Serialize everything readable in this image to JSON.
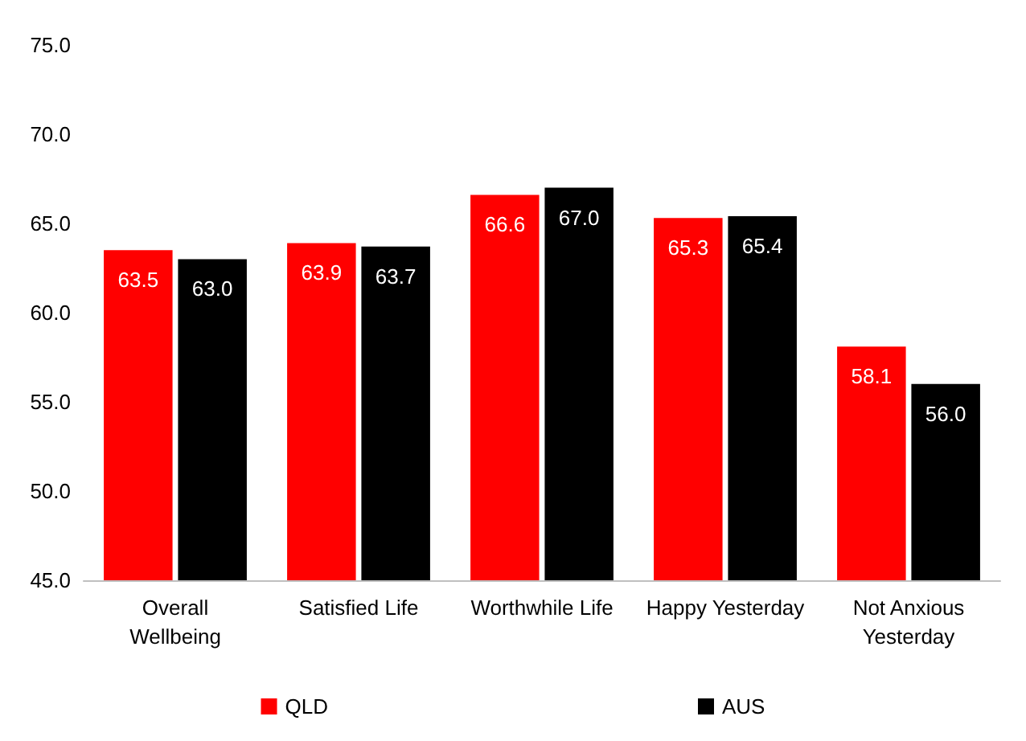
{
  "chart_data": {
    "type": "bar",
    "categories": [
      "Overall Wellbeing",
      "Satisfied Life",
      "Worthwhile Life",
      "Happy Yesterday",
      "Not Anxious Yesterday"
    ],
    "series": [
      {
        "name": "QLD",
        "color": "#ff0000",
        "values": [
          63.5,
          63.9,
          66.6,
          65.3,
          58.1
        ],
        "value_labels": [
          "63.5",
          "63.9",
          "66.6",
          "65.3",
          "58.1"
        ]
      },
      {
        "name": "AUS",
        "color": "#000000",
        "values": [
          63.0,
          63.7,
          67.0,
          65.4,
          56.0
        ],
        "value_labels": [
          "63.0",
          "63.7",
          "67.0",
          "65.4",
          "56.0"
        ]
      }
    ],
    "ylim": [
      45,
      75
    ],
    "yticks": [
      {
        "value": 45,
        "label": "45.0"
      },
      {
        "value": 50,
        "label": "50.0"
      },
      {
        "value": 55,
        "label": "55.0"
      },
      {
        "value": 60,
        "label": "60.0"
      },
      {
        "value": 65,
        "label": "65.0"
      },
      {
        "value": 70,
        "label": "70.0"
      },
      {
        "value": 75,
        "label": "75.0"
      }
    ],
    "grid": false,
    "legend": "bottom"
  }
}
